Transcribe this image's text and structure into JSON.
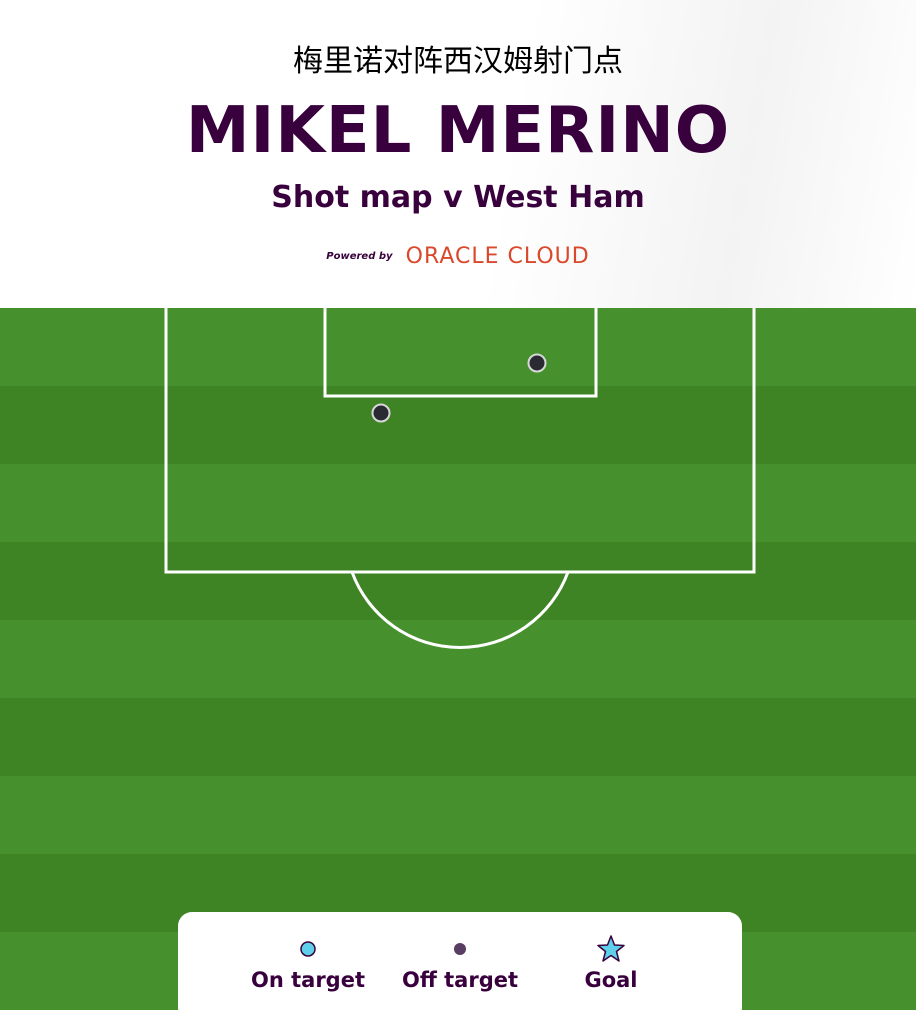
{
  "header": {
    "caption": "梅里诺对阵西汉姆射门点",
    "player_name": "MIKEL MERINO",
    "subtitle": "Shot map v West Ham",
    "powered_by_label": "Powered by",
    "sponsor": "ORACLE CLOUD"
  },
  "colors": {
    "brand_purple": "#38003c",
    "sponsor_red": "#d9482b",
    "pitch_light": "#46912e",
    "pitch_dark": "#3e8425",
    "line": "#ffffff",
    "on_target": "#5fd0ea",
    "off_target": "#5a3d63",
    "goal": "#5fd0ea",
    "shot_fill": "#2a2a33"
  },
  "shots": [
    {
      "result": "off-target",
      "near": "six-yard-box right side"
    },
    {
      "result": "off-target",
      "near": "left edge of six-yard box"
    }
  ],
  "legend": {
    "items": [
      {
        "icon": "cyan-circle-icon",
        "label": "On target"
      },
      {
        "icon": "purple-dot-icon",
        "label": "Off target"
      },
      {
        "icon": "star-icon",
        "label": "Goal"
      }
    ]
  }
}
